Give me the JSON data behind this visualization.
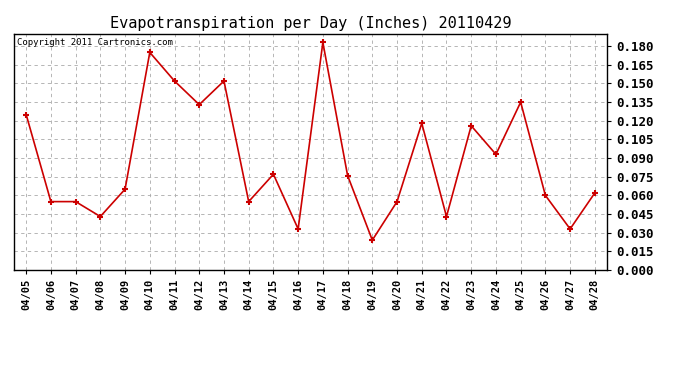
{
  "title": "Evapotranspiration per Day (Inches) 20110429",
  "copyright": "Copyright 2011 Cartronics.com",
  "dates": [
    "04/05",
    "04/06",
    "04/07",
    "04/08",
    "04/09",
    "04/10",
    "04/11",
    "04/12",
    "04/13",
    "04/14",
    "04/15",
    "04/16",
    "04/17",
    "04/18",
    "04/19",
    "04/20",
    "04/21",
    "04/22",
    "04/23",
    "04/24",
    "04/25",
    "04/26",
    "04/27",
    "04/28"
  ],
  "values": [
    0.125,
    0.055,
    0.055,
    0.043,
    0.065,
    0.175,
    0.152,
    0.133,
    0.152,
    0.055,
    0.077,
    0.033,
    0.183,
    0.076,
    0.024,
    0.055,
    0.118,
    0.043,
    0.116,
    0.093,
    0.135,
    0.06,
    0.033,
    0.062
  ],
  "line_color": "#cc0000",
  "marker": "+",
  "marker_size": 5,
  "line_width": 1.2,
  "background_color": "#ffffff",
  "plot_bg_color": "#ffffff",
  "grid_color": "#aaaaaa",
  "ylim": [
    0.0,
    0.19
  ],
  "yticks": [
    0.0,
    0.015,
    0.03,
    0.045,
    0.06,
    0.075,
    0.09,
    0.105,
    0.12,
    0.135,
    0.15,
    0.165,
    0.18
  ],
  "title_fontsize": 11,
  "copyright_fontsize": 6.5,
  "tick_fontsize": 9,
  "xtick_fontsize": 7.5
}
